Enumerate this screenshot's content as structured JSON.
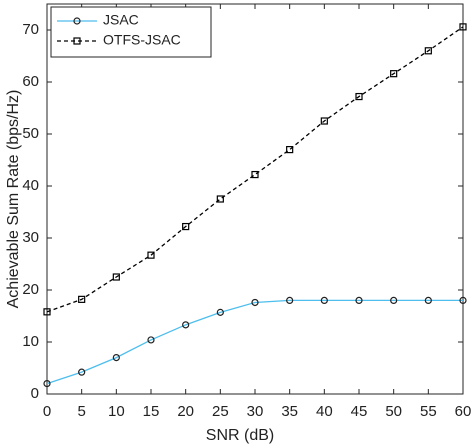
{
  "chart_data": {
    "type": "line",
    "x_label": "SNR  (dB)",
    "y_label": "Achievable Sum Rate (bps/Hz)",
    "x": [
      0,
      5,
      10,
      15,
      20,
      25,
      30,
      35,
      40,
      45,
      50,
      55,
      60
    ],
    "series": [
      {
        "name": "JSAC",
        "color": "#4dbeee",
        "linestyle": "solid",
        "marker": "circle",
        "values": [
          2,
          4.2,
          7,
          10.4,
          13.3,
          15.7,
          17.6,
          18,
          18,
          18,
          18,
          18,
          18
        ]
      },
      {
        "name": "OTFS-JSAC",
        "color": "#000000",
        "linestyle": "dashed",
        "marker": "square",
        "values": [
          15.8,
          18.2,
          22.5,
          26.7,
          32.2,
          37.5,
          42.2,
          47,
          52.5,
          57.2,
          61.6,
          66,
          70.6
        ]
      }
    ],
    "xlim": [
      0,
      60
    ],
    "xticks": [
      0,
      5,
      10,
      15,
      20,
      25,
      30,
      35,
      40,
      45,
      50,
      55,
      60
    ],
    "ylim": [
      0,
      75
    ],
    "yticks": [
      0,
      10,
      20,
      30,
      40,
      50,
      60,
      70
    ],
    "grid": false,
    "legend": "upper left"
  }
}
